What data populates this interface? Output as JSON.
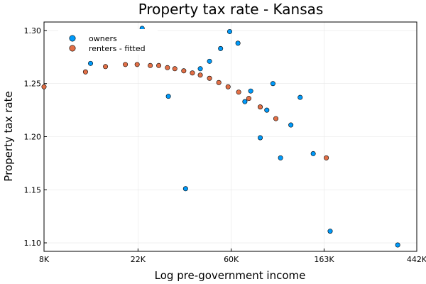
{
  "chart_data": {
    "type": "scatter",
    "title": "Property tax rate - Kansas",
    "xlabel": "Log pre-government income",
    "ylabel": "Property tax rate",
    "x_scale": "log",
    "xlim": [
      8000,
      442000
    ],
    "ylim": [
      1.092,
      1.308
    ],
    "x_ticks": [
      {
        "value": 8000,
        "label": "8K"
      },
      {
        "value": 22000,
        "label": "22K"
      },
      {
        "value": 60000,
        "label": "60K"
      },
      {
        "value": 163000,
        "label": "163K"
      },
      {
        "value": 442000,
        "label": "442K"
      }
    ],
    "y_ticks": [
      {
        "value": 1.1,
        "label": "1.10"
      },
      {
        "value": 1.15,
        "label": "1.15"
      },
      {
        "value": 1.2,
        "label": "1.20"
      },
      {
        "value": 1.25,
        "label": "1.25"
      },
      {
        "value": 1.3,
        "label": "1.30"
      }
    ],
    "grid": true,
    "legend_position": "top-left",
    "series": [
      {
        "name": "owners",
        "color": "#009AFA",
        "points": [
          {
            "x": 13200,
            "y": 1.269
          },
          {
            "x": 23000,
            "y": 1.302
          },
          {
            "x": 30500,
            "y": 1.238
          },
          {
            "x": 36700,
            "y": 1.151
          },
          {
            "x": 43000,
            "y": 1.264
          },
          {
            "x": 47500,
            "y": 1.271
          },
          {
            "x": 53500,
            "y": 1.283
          },
          {
            "x": 59000,
            "y": 1.299
          },
          {
            "x": 64500,
            "y": 1.288
          },
          {
            "x": 69500,
            "y": 1.233
          },
          {
            "x": 74000,
            "y": 1.243
          },
          {
            "x": 82000,
            "y": 1.199
          },
          {
            "x": 88000,
            "y": 1.225
          },
          {
            "x": 94000,
            "y": 1.25
          },
          {
            "x": 102000,
            "y": 1.18
          },
          {
            "x": 114000,
            "y": 1.211
          },
          {
            "x": 126000,
            "y": 1.237
          },
          {
            "x": 145000,
            "y": 1.184
          },
          {
            "x": 174000,
            "y": 1.111
          },
          {
            "x": 360000,
            "y": 1.098
          }
        ]
      },
      {
        "name": "renters - fitted",
        "color": "#E26F46",
        "points": [
          {
            "x": 8000,
            "y": 1.247
          },
          {
            "x": 12500,
            "y": 1.261
          },
          {
            "x": 15500,
            "y": 1.266
          },
          {
            "x": 19200,
            "y": 1.268
          },
          {
            "x": 21800,
            "y": 1.268
          },
          {
            "x": 25100,
            "y": 1.267
          },
          {
            "x": 27500,
            "y": 1.267
          },
          {
            "x": 30200,
            "y": 1.265
          },
          {
            "x": 32700,
            "y": 1.264
          },
          {
            "x": 36000,
            "y": 1.262
          },
          {
            "x": 39500,
            "y": 1.26
          },
          {
            "x": 43000,
            "y": 1.258
          },
          {
            "x": 47500,
            "y": 1.255
          },
          {
            "x": 52500,
            "y": 1.251
          },
          {
            "x": 58000,
            "y": 1.247
          },
          {
            "x": 65000,
            "y": 1.242
          },
          {
            "x": 72500,
            "y": 1.236
          },
          {
            "x": 82000,
            "y": 1.228
          },
          {
            "x": 97000,
            "y": 1.217
          },
          {
            "x": 167000,
            "y": 1.18
          }
        ]
      }
    ]
  }
}
